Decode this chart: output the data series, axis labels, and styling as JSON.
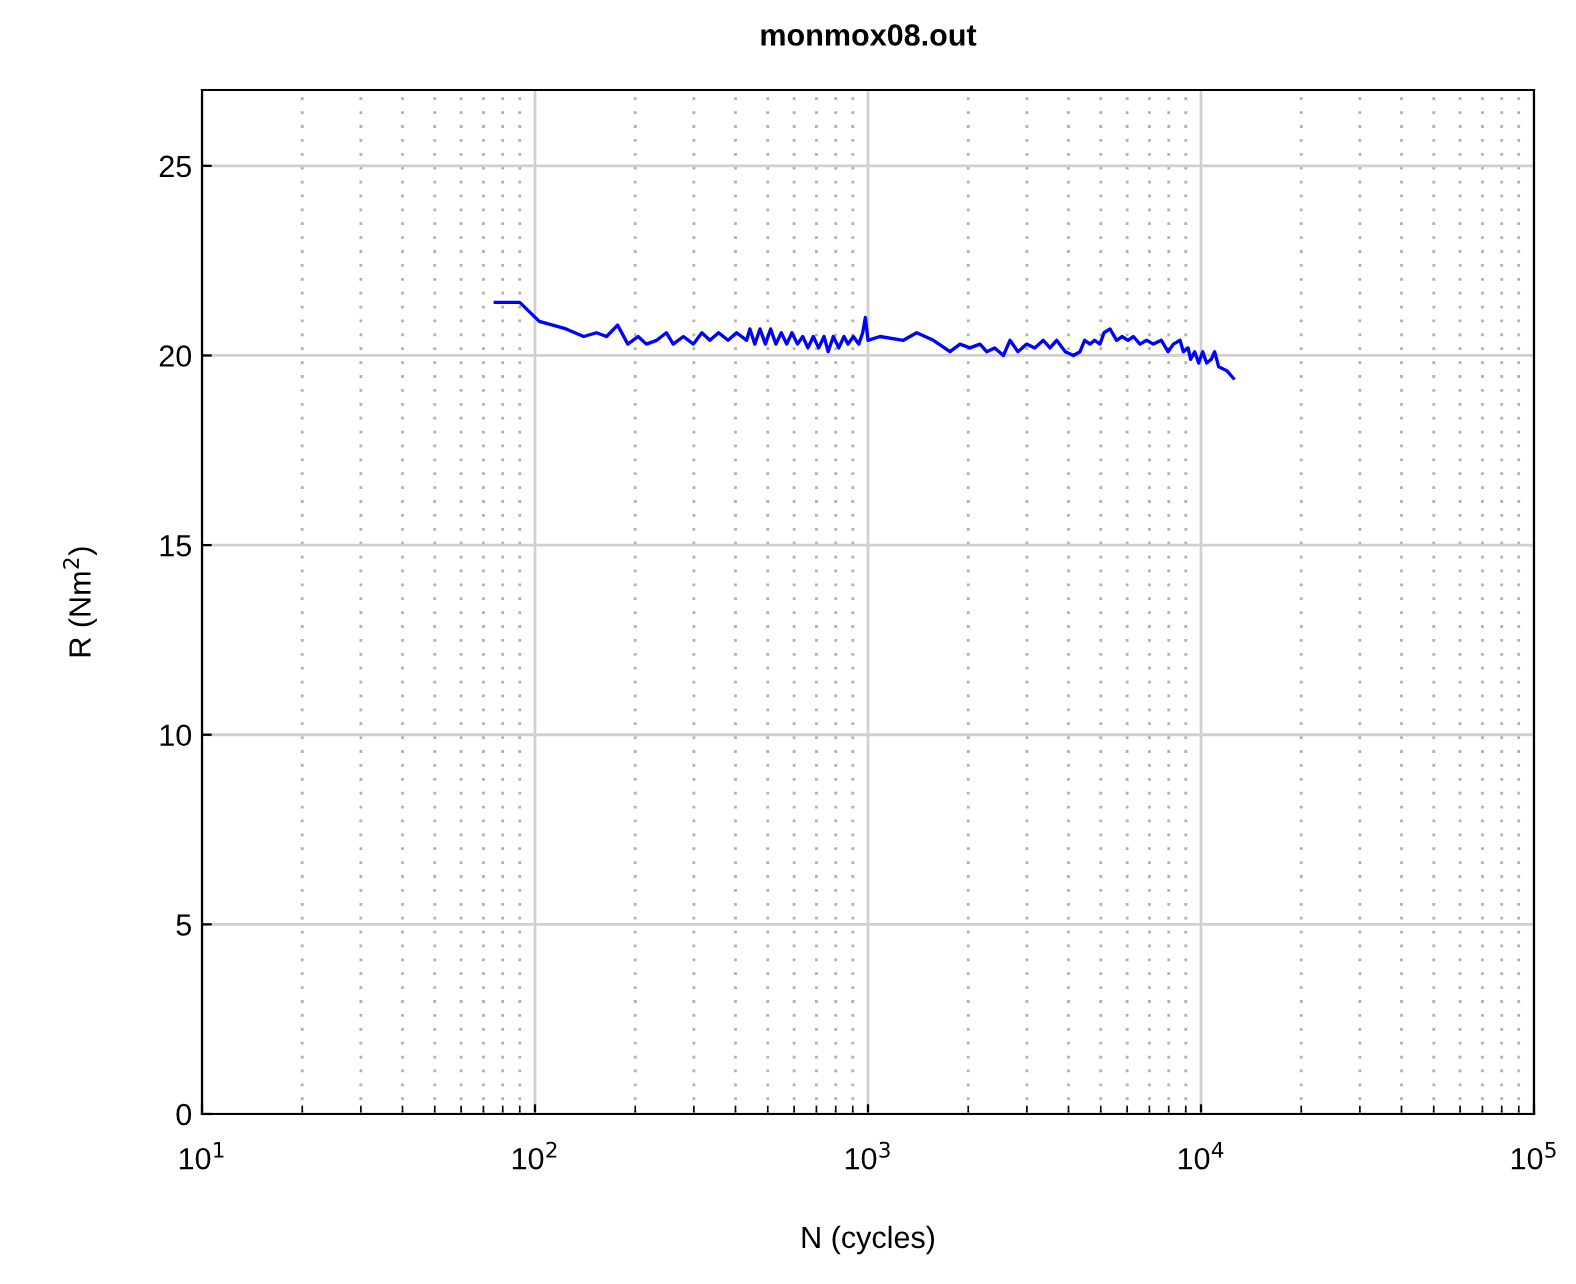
{
  "chart_data": {
    "type": "line",
    "title": "monmox08.out",
    "xlabel": "N (cycles)",
    "ylabel": "R (Nm$^{2}$)",
    "log": "x",
    "grid": true,
    "legend": false,
    "xlim": [
      10,
      100000
    ],
    "xticks": [
      {
        "value": 10,
        "label": "10$^{1}$"
      },
      {
        "value": 100,
        "label": "10$^{2}$"
      },
      {
        "value": 1000,
        "label": "10$^{3}$"
      },
      {
        "value": 10000,
        "label": "10$^{4}$"
      },
      {
        "value": 100000,
        "label": "10$^{5}$"
      }
    ],
    "ylim": [
      0,
      27
    ],
    "yticks": [
      0,
      5,
      10,
      15,
      20,
      25
    ],
    "series": [
      {
        "color": "#0000ff",
        "x": [
          76,
          90,
          103,
          124,
          140,
          153,
          164,
          177,
          190,
          204,
          216,
          232,
          248,
          260,
          279,
          299,
          317,
          335,
          356,
          380,
          403,
          432,
          442,
          457,
          474,
          492,
          510,
          529,
          549,
          570,
          591,
          614,
          637,
          660,
          685,
          711,
          738,
          759,
          787,
          817,
          847,
          871,
          904,
          938,
          964,
          982,
          1000,
          1086,
          1277,
          1400,
          1572,
          1763,
          1889,
          2024,
          2169,
          2272,
          2401,
          2550,
          2669,
          2821,
          2996,
          3167,
          3362,
          3520,
          3686,
          3913,
          4137,
          4331,
          4473,
          4642,
          4794,
          4974,
          5113,
          5330,
          5579,
          5792,
          6037,
          6264,
          6559,
          6868,
          7192,
          7602,
          7961,
          8261,
          8650,
          8852,
          9142,
          9311,
          9573,
          9840,
          10116,
          10399,
          10740,
          10990,
          11300,
          11950,
          12510
        ],
        "values": [
          21.4,
          21.4,
          20.9,
          20.7,
          20.5,
          20.6,
          20.5,
          20.8,
          20.3,
          20.5,
          20.3,
          20.4,
          20.6,
          20.3,
          20.5,
          20.3,
          20.6,
          20.4,
          20.6,
          20.4,
          20.6,
          20.4,
          20.7,
          20.3,
          20.7,
          20.3,
          20.7,
          20.3,
          20.6,
          20.3,
          20.6,
          20.3,
          20.5,
          20.2,
          20.5,
          20.2,
          20.5,
          20.1,
          20.5,
          20.2,
          20.5,
          20.3,
          20.5,
          20.3,
          20.6,
          21.0,
          20.4,
          20.5,
          20.4,
          20.6,
          20.4,
          20.1,
          20.3,
          20.2,
          20.3,
          20.1,
          20.2,
          20.0,
          20.4,
          20.1,
          20.3,
          20.2,
          20.4,
          20.2,
          20.4,
          20.1,
          20.0,
          20.1,
          20.4,
          20.3,
          20.4,
          20.3,
          20.6,
          20.7,
          20.4,
          20.5,
          20.4,
          20.5,
          20.3,
          20.4,
          20.3,
          20.4,
          20.1,
          20.3,
          20.4,
          20.1,
          20.2,
          19.9,
          20.1,
          19.8,
          20.1,
          19.8,
          19.9,
          20.1,
          19.7,
          19.6,
          19.4
        ]
      }
    ]
  }
}
